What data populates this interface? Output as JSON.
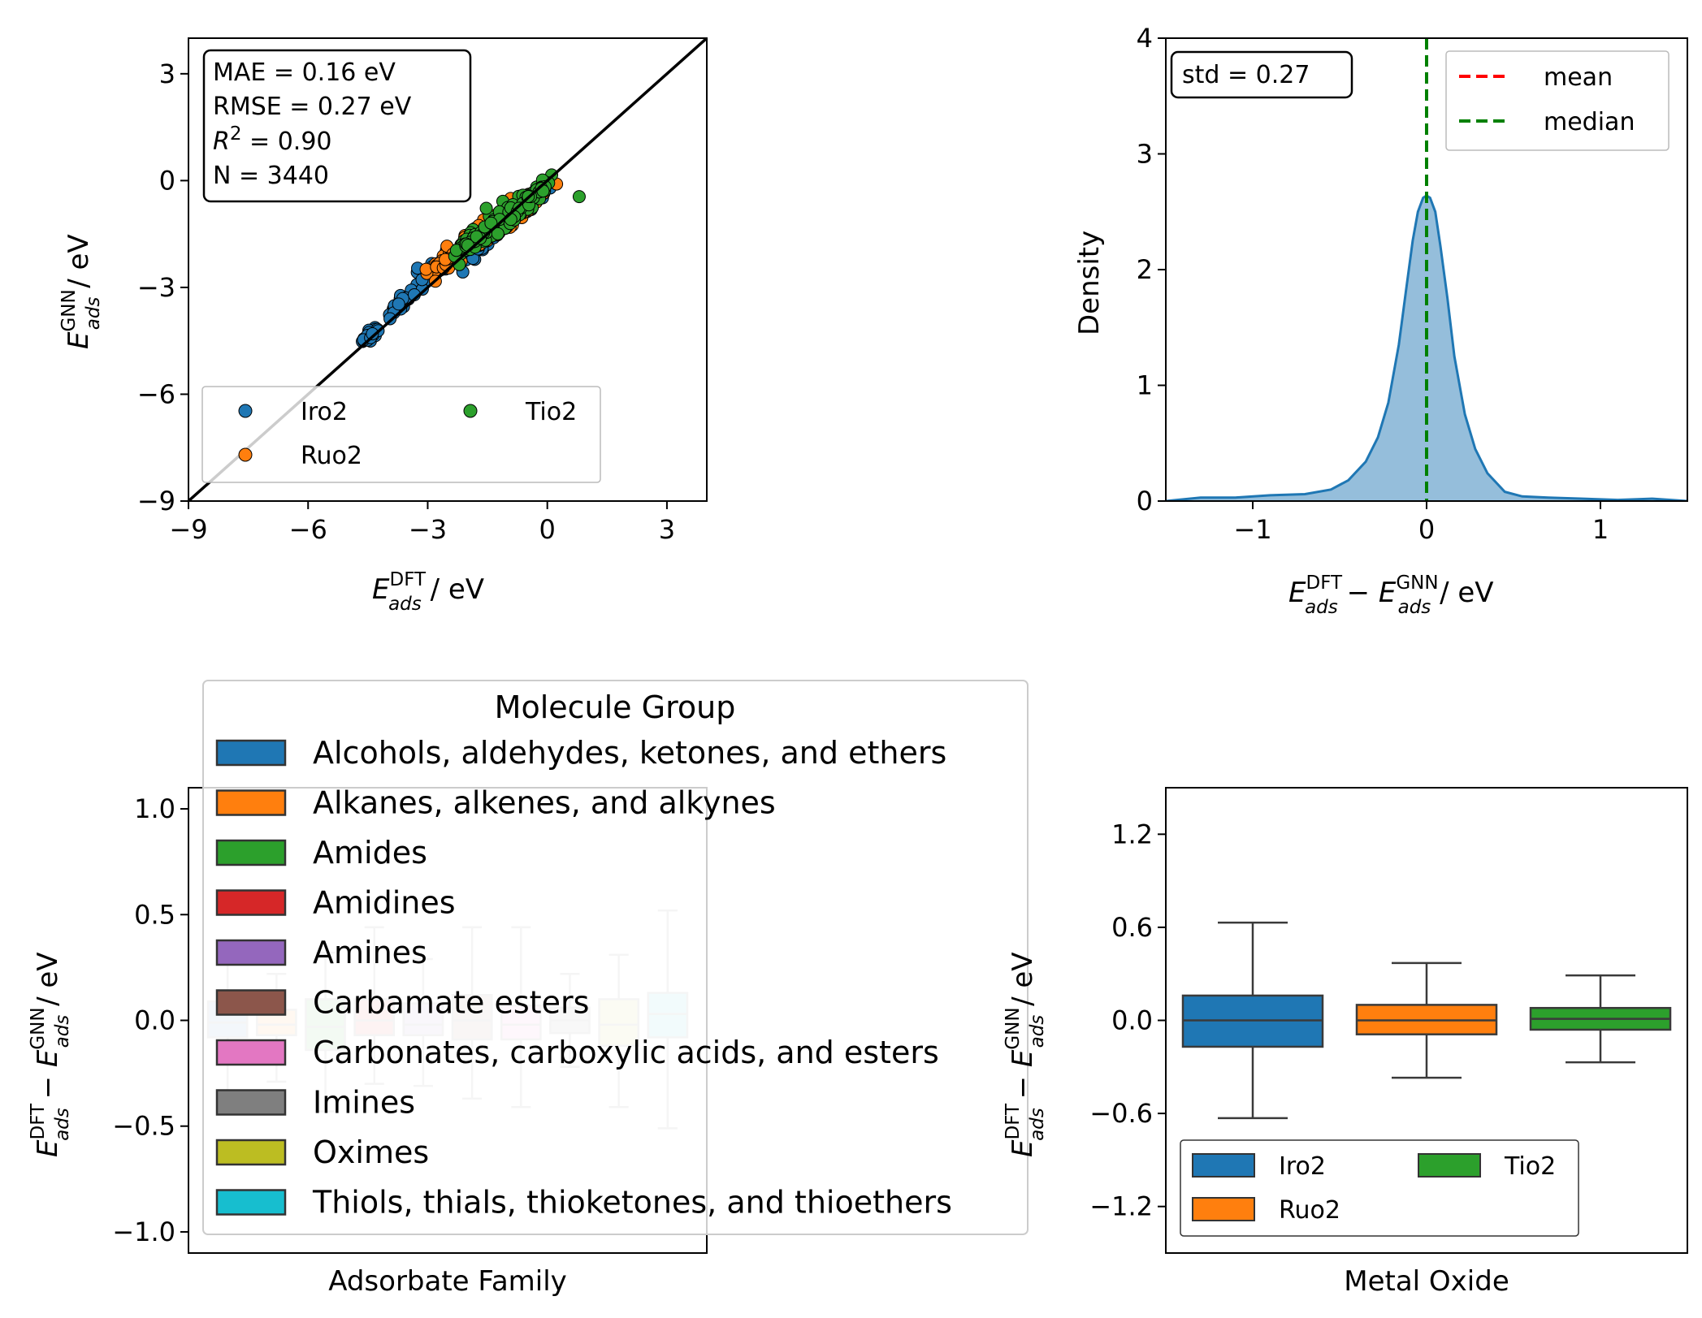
{
  "colors": {
    "iro2": "#1f77b4",
    "ruo2": "#ff7f0e",
    "tio2": "#2ca02c",
    "mean_line": "#ff0000",
    "median_line": "#008000",
    "kde_fill": "#8fbbd9",
    "kde_line": "#1f77b4",
    "families": [
      "#1f77b4",
      "#ff7f0e",
      "#2ca02c",
      "#d62728",
      "#9467bd",
      "#8c564b",
      "#e377c2",
      "#7f7f7f",
      "#bcbd22",
      "#17becf"
    ]
  },
  "chart_data": [
    {
      "id": "parity",
      "type": "scatter",
      "xlabel": {
        "base": "E",
        "sub": "ads",
        "sup": "DFT",
        "unit": " / eV"
      },
      "ylabel": {
        "base": "E",
        "sub": "ads",
        "sup": "GNN",
        "unit": " / eV"
      },
      "xlim": [
        -9,
        4
      ],
      "ylim": [
        -9,
        4
      ],
      "xticks": [
        -9,
        -6,
        -3,
        0,
        3
      ],
      "yticks": [
        -9,
        -6,
        -3,
        0,
        3
      ],
      "xtick_labels": [
        "−9",
        "−6",
        "−3",
        "0",
        "3"
      ],
      "ytick_labels": [
        "−9",
        "−6",
        "−3",
        "0",
        "3"
      ],
      "parity_line": [
        [
          -9,
          -9
        ],
        [
          4,
          4
        ]
      ],
      "stats": {
        "mae": "MAE = 0.16 eV",
        "rmse": "RMSE = 0.27 eV",
        "r2_base": "R",
        "r2_sup": "2",
        "r2_rest": " = 0.90",
        "n": "N = 3440"
      },
      "legend_position": "lower-left",
      "series": [
        {
          "name": "Iro2",
          "color": "#1f77b4",
          "x_range": [
            -4.5,
            0
          ],
          "clusters": [
            [
              -4.4,
              -4.3,
              0.12
            ],
            [
              -3.6,
              -3.4,
              0.22
            ],
            [
              -2.9,
              -2.5,
              0.3
            ],
            [
              -2.0,
              -2.1,
              0.35
            ],
            [
              -1.2,
              -1.3,
              0.35
            ],
            [
              -0.4,
              -0.6,
              0.25
            ]
          ]
        },
        {
          "name": "Ruo2",
          "color": "#ff7f0e",
          "x_range": [
            -3.0,
            0
          ],
          "clusters": [
            [
              -2.5,
              -2.2,
              0.3
            ],
            [
              -1.8,
              -1.5,
              0.35
            ],
            [
              -1.2,
              -1.2,
              0.35
            ],
            [
              -0.6,
              -0.8,
              0.3
            ]
          ]
        },
        {
          "name": "Tio2",
          "color": "#2ca02c",
          "x_range": [
            -2.4,
            0.8
          ],
          "clusters": [
            [
              -2.0,
              -1.8,
              0.2
            ],
            [
              -1.4,
              -1.2,
              0.3
            ],
            [
              -0.8,
              -0.9,
              0.3
            ],
            [
              -0.3,
              -0.4,
              0.2
            ]
          ],
          "outlier": [
            0.8,
            -0.45
          ]
        }
      ]
    },
    {
      "id": "density",
      "type": "area",
      "xlabel": {
        "base1": "E",
        "sub1": "ads",
        "sup1": "DFT",
        "minus": " − ",
        "base2": "E",
        "sub2": "ads",
        "sup2": "GNN",
        "unit": " / eV"
      },
      "ylabel": "Density",
      "xlim": [
        -1.5,
        1.5
      ],
      "ylim": [
        0,
        4
      ],
      "xticks": [
        -1,
        0,
        1
      ],
      "yticks": [
        0,
        1,
        2,
        3,
        4
      ],
      "xtick_labels": [
        "−1",
        "0",
        "1"
      ],
      "ytick_labels": [
        "0",
        "1",
        "2",
        "3",
        "4"
      ],
      "x": [
        -1.5,
        -1.3,
        -1.1,
        -0.9,
        -0.7,
        -0.55,
        -0.45,
        -0.35,
        -0.28,
        -0.22,
        -0.16,
        -0.12,
        -0.08,
        -0.05,
        -0.02,
        0.0,
        0.02,
        0.05,
        0.08,
        0.12,
        0.16,
        0.22,
        0.28,
        0.35,
        0.45,
        0.55,
        0.7,
        0.9,
        1.1,
        1.3,
        1.5
      ],
      "y": [
        0.0,
        0.03,
        0.03,
        0.05,
        0.06,
        0.1,
        0.18,
        0.34,
        0.55,
        0.85,
        1.35,
        1.8,
        2.25,
        2.5,
        2.62,
        2.64,
        2.62,
        2.5,
        2.2,
        1.75,
        1.25,
        0.75,
        0.45,
        0.24,
        0.08,
        0.04,
        0.03,
        0.02,
        0.01,
        0.02,
        0.0
      ],
      "mean": 0.0,
      "median": 0.0,
      "std_label": "std = 0.27",
      "legend": {
        "mean": "mean",
        "median": "median"
      },
      "legend_position": "upper-right"
    },
    {
      "id": "family_box",
      "type": "box",
      "xlabel": "Adsorbate Family",
      "ylabel": {
        "base1": "E",
        "sub1": "ads",
        "sup1": "DFT",
        "minus": " − ",
        "base2": "E",
        "sub2": "ads",
        "sup2": "GNN",
        "unit": " / eV"
      },
      "ylim": [
        -1.1,
        1.1
      ],
      "yticks": [
        -1.0,
        -0.5,
        0.0,
        0.5,
        1.0
      ],
      "ytick_labels": [
        "−1.0",
        "−0.5",
        "0.0",
        "0.5",
        "1.0"
      ],
      "legend_title": "Molecule Group",
      "legend_position": "upper-left",
      "categories": [
        "Alcohols, aldehydes, ketones, and ethers",
        "Alkanes, alkenes, and alkynes",
        "Amides",
        "Amidines",
        "Amines",
        "Carbamate esters",
        "Carbonates, carboxylic acids, and esters",
        "Imines",
        "Oximes",
        "Thiols, thials, thioketones, and thioethers"
      ],
      "boxes": [
        {
          "q1": -0.08,
          "median": -0.01,
          "q3": 0.09,
          "whislo": -0.36,
          "whishi": 0.36
        },
        {
          "q1": -0.07,
          "median": -0.02,
          "q3": 0.05,
          "whislo": -0.29,
          "whishi": 0.22
        },
        {
          "q1": -0.14,
          "median": -0.03,
          "q3": 0.1,
          "whislo": -0.43,
          "whishi": 0.32
        },
        {
          "q1": -0.07,
          "median": 0.0,
          "q3": 0.1,
          "whislo": -0.3,
          "whishi": 0.44
        },
        {
          "q1": -0.07,
          "median": -0.02,
          "q3": 0.08,
          "whislo": -0.31,
          "whishi": 0.29
        },
        {
          "q1": -0.09,
          "median": 0.0,
          "q3": 0.12,
          "whislo": -0.37,
          "whishi": 0.44
        },
        {
          "q1": -0.09,
          "median": -0.02,
          "q3": 0.07,
          "whislo": -0.41,
          "whishi": 0.44
        },
        {
          "q1": -0.06,
          "median": 0.0,
          "q3": 0.06,
          "whislo": -0.22,
          "whishi": 0.22
        },
        {
          "q1": -0.12,
          "median": -0.02,
          "q3": 0.1,
          "whislo": -0.41,
          "whishi": 0.31
        },
        {
          "q1": -0.08,
          "median": 0.03,
          "q3": 0.13,
          "whislo": -0.51,
          "whishi": 0.52
        }
      ]
    },
    {
      "id": "oxide_box",
      "type": "box",
      "xlabel": "Metal Oxide",
      "ylabel": {
        "base1": "E",
        "sub1": "ads",
        "sup1": "DFT",
        "minus": " − ",
        "base2": "E",
        "sub2": "ads",
        "sup2": "GNN",
        "unit": " / eV"
      },
      "ylim": [
        -1.5,
        1.5
      ],
      "yticks": [
        -1.2,
        -0.6,
        0.0,
        0.6,
        1.2
      ],
      "ytick_labels": [
        "−1.2",
        "−0.6",
        "0.0",
        "0.6",
        "1.2"
      ],
      "legend_position": "lower-left",
      "categories": [
        "Iro2",
        "Ruo2",
        "Tio2"
      ],
      "boxes": [
        {
          "q1": -0.17,
          "median": 0.0,
          "q3": 0.16,
          "whislo": -0.63,
          "whishi": 0.63
        },
        {
          "q1": -0.09,
          "median": 0.0,
          "q3": 0.1,
          "whislo": -0.37,
          "whishi": 0.37
        },
        {
          "q1": -0.06,
          "median": 0.01,
          "q3": 0.08,
          "whislo": -0.27,
          "whishi": 0.29
        }
      ]
    }
  ]
}
